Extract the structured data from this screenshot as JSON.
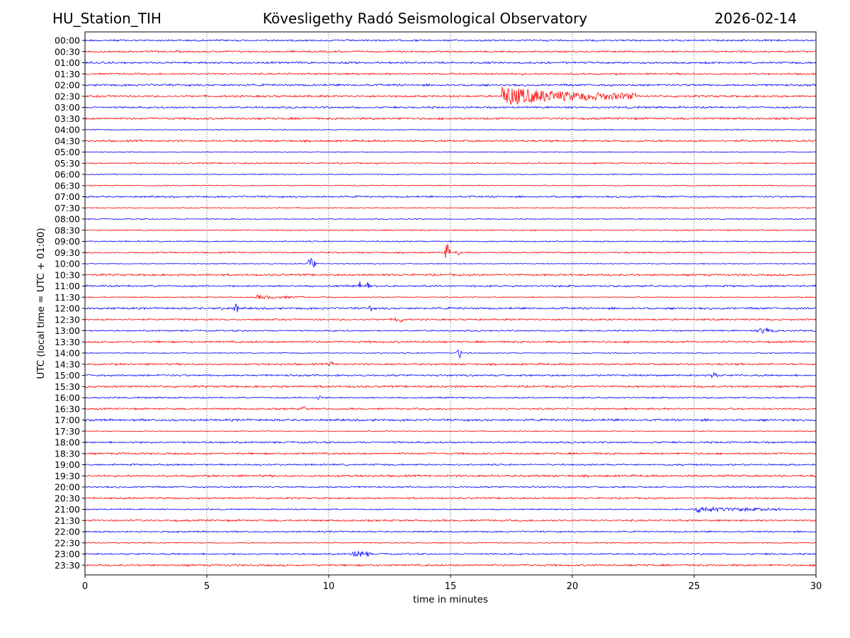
{
  "header": {
    "station": "HU_Station_TIH",
    "title": "Kövesligethy Radó Seismological Observatory",
    "date": "2026-02-14"
  },
  "chart_data": {
    "type": "line",
    "xlabel": "time in minutes",
    "ylabel": "UTC (local time = UTC + 01:00)",
    "xlim": [
      0,
      30
    ],
    "x_ticks": [
      "0",
      "5",
      "10",
      "15",
      "20",
      "25",
      "30"
    ],
    "grid": "vertical dotted at each x tick",
    "colors": {
      "even_rows": "#0000ff",
      "odd_rows": "#ff0000"
    },
    "rows": [
      "00:00",
      "00:30",
      "01:00",
      "01:30",
      "02:00",
      "02:30",
      "03:00",
      "03:30",
      "04:00",
      "04:30",
      "05:00",
      "05:30",
      "06:00",
      "06:30",
      "07:00",
      "07:30",
      "08:00",
      "08:30",
      "09:00",
      "09:30",
      "10:00",
      "10:30",
      "11:00",
      "11:30",
      "12:00",
      "12:30",
      "13:00",
      "13:30",
      "14:00",
      "14:30",
      "15:00",
      "15:30",
      "16:00",
      "16:30",
      "17:00",
      "17:30",
      "18:00",
      "18:30",
      "19:00",
      "19:30",
      "20:00",
      "20:30",
      "21:00",
      "21:30",
      "22:00",
      "22:30",
      "23:00",
      "23:30"
    ],
    "events": [
      {
        "row": "02:30",
        "minute": 17.1,
        "duration_min": 5.5,
        "amplitude": 1.0
      },
      {
        "row": "09:30",
        "minute": 14.7,
        "duration_min": 0.3,
        "amplitude": 0.85
      },
      {
        "row": "09:30",
        "minute": 15.2,
        "duration_min": 0.2,
        "amplitude": 0.3
      },
      {
        "row": "10:00",
        "minute": 9.1,
        "duration_min": 0.4,
        "amplitude": 0.6
      },
      {
        "row": "11:00",
        "minute": 11.2,
        "duration_min": 0.2,
        "amplitude": 0.4
      },
      {
        "row": "11:00",
        "minute": 11.5,
        "duration_min": 0.2,
        "amplitude": 0.35
      },
      {
        "row": "11:30",
        "minute": 7.0,
        "duration_min": 2.0,
        "amplitude": 0.2
      },
      {
        "row": "12:00",
        "minute": 5.5,
        "duration_min": 0.2,
        "amplitude": 0.35
      },
      {
        "row": "12:00",
        "minute": 6.1,
        "duration_min": 0.2,
        "amplitude": 0.45
      },
      {
        "row": "12:00",
        "minute": 11.6,
        "duration_min": 0.2,
        "amplitude": 0.3
      },
      {
        "row": "12:30",
        "minute": 12.7,
        "duration_min": 0.15,
        "amplitude": 0.4
      },
      {
        "row": "12:30",
        "minute": 12.9,
        "duration_min": 0.15,
        "amplitude": 0.35
      },
      {
        "row": "13:00",
        "minute": 27.5,
        "duration_min": 1.0,
        "amplitude": 0.25
      },
      {
        "row": "14:00",
        "minute": 15.2,
        "duration_min": 0.3,
        "amplitude": 0.5
      },
      {
        "row": "14:30",
        "minute": 10.0,
        "duration_min": 0.2,
        "amplitude": 0.3
      },
      {
        "row": "15:00",
        "minute": 25.5,
        "duration_min": 0.5,
        "amplitude": 0.25
      },
      {
        "row": "16:00",
        "minute": 9.4,
        "duration_min": 0.3,
        "amplitude": 0.3
      },
      {
        "row": "16:30",
        "minute": 8.9,
        "duration_min": 0.15,
        "amplitude": 0.35
      },
      {
        "row": "21:00",
        "minute": 25.0,
        "duration_min": 3.6,
        "amplitude": 0.3
      },
      {
        "row": "23:00",
        "minute": 10.8,
        "duration_min": 1.0,
        "amplitude": 0.25
      }
    ]
  }
}
